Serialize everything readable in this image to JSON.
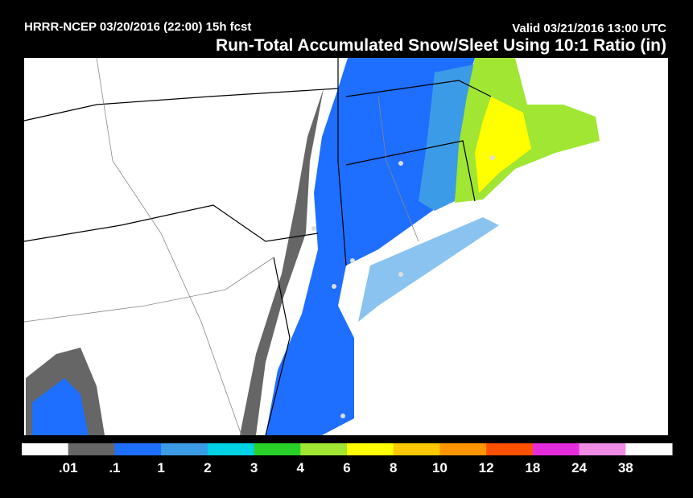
{
  "header": {
    "model_line": "HRRR-NCEP 03/20/2016 (22:00) 15h fcst",
    "valid_line": "Valid 03/21/2016 13:00 UTC",
    "title": "Run-Total Accumulated Snow/Sleet Using 10:1 Ratio (in)"
  },
  "legend": {
    "labels": [
      ".01",
      ".1",
      "1",
      "2",
      "3",
      "4",
      "6",
      "8",
      "10",
      "12",
      "18",
      "24",
      "38"
    ],
    "colors": [
      "#ffffff",
      "#666666",
      "#1e6eff",
      "#3c9be6",
      "#00d2e6",
      "#28d228",
      "#a0e632",
      "#ffff00",
      "#ffc800",
      "#ff9600",
      "#ff5000",
      "#e62ddc",
      "#f08ce6",
      "#ffffff"
    ]
  }
}
